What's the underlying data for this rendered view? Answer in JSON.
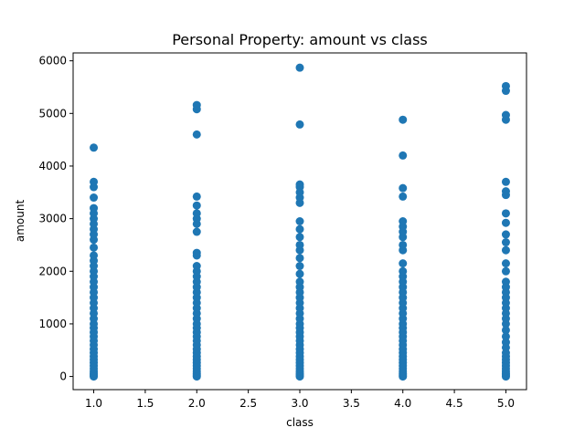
{
  "chart_data": {
    "type": "scatter",
    "title": "Personal Property: amount vs class",
    "xlabel": "class",
    "ylabel": "amount",
    "xlim": [
      0.8,
      5.2
    ],
    "ylim": [
      -250,
      6150
    ],
    "x_ticks": [
      1.0,
      1.5,
      2.0,
      2.5,
      3.0,
      3.5,
      4.0,
      4.5,
      5.0
    ],
    "x_tick_labels": [
      "1.0",
      "1.5",
      "2.0",
      "2.5",
      "3.0",
      "3.5",
      "4.0",
      "4.5",
      "5.0"
    ],
    "y_ticks": [
      0,
      1000,
      2000,
      3000,
      4000,
      5000,
      6000
    ],
    "y_tick_labels": [
      "0",
      "1000",
      "2000",
      "3000",
      "4000",
      "5000",
      "6000"
    ],
    "grid": false,
    "marker_color": "#1f77b4",
    "series": [
      {
        "points": [
          [
            1,
            0
          ],
          [
            1,
            30
          ],
          [
            1,
            60
          ],
          [
            1,
            100
          ],
          [
            1,
            150
          ],
          [
            1,
            200
          ],
          [
            1,
            260
          ],
          [
            1,
            320
          ],
          [
            1,
            380
          ],
          [
            1,
            450
          ],
          [
            1,
            520
          ],
          [
            1,
            600
          ],
          [
            1,
            680
          ],
          [
            1,
            760
          ],
          [
            1,
            840
          ],
          [
            1,
            920
          ],
          [
            1,
            1000
          ],
          [
            1,
            1100
          ],
          [
            1,
            1200
          ],
          [
            1,
            1300
          ],
          [
            1,
            1400
          ],
          [
            1,
            1500
          ],
          [
            1,
            1600
          ],
          [
            1,
            1700
          ],
          [
            1,
            1800
          ],
          [
            1,
            1900
          ],
          [
            1,
            2000
          ],
          [
            1,
            2100
          ],
          [
            1,
            2200
          ],
          [
            1,
            2300
          ],
          [
            1,
            2450
          ],
          [
            1,
            2600
          ],
          [
            1,
            2700
          ],
          [
            1,
            2800
          ],
          [
            1,
            2900
          ],
          [
            1,
            3000
          ],
          [
            1,
            3100
          ],
          [
            1,
            3200
          ],
          [
            1,
            3400
          ],
          [
            1,
            3600
          ],
          [
            1,
            3700
          ],
          [
            1,
            4350
          ],
          [
            2,
            0
          ],
          [
            2,
            30
          ],
          [
            2,
            60
          ],
          [
            2,
            100
          ],
          [
            2,
            150
          ],
          [
            2,
            200
          ],
          [
            2,
            260
          ],
          [
            2,
            320
          ],
          [
            2,
            380
          ],
          [
            2,
            450
          ],
          [
            2,
            520
          ],
          [
            2,
            600
          ],
          [
            2,
            680
          ],
          [
            2,
            760
          ],
          [
            2,
            840
          ],
          [
            2,
            920
          ],
          [
            2,
            1000
          ],
          [
            2,
            1100
          ],
          [
            2,
            1200
          ],
          [
            2,
            1300
          ],
          [
            2,
            1400
          ],
          [
            2,
            1500
          ],
          [
            2,
            1600
          ],
          [
            2,
            1700
          ],
          [
            2,
            1800
          ],
          [
            2,
            1900
          ],
          [
            2,
            2000
          ],
          [
            2,
            2100
          ],
          [
            2,
            2300
          ],
          [
            2,
            2350
          ],
          [
            2,
            2750
          ],
          [
            2,
            2900
          ],
          [
            2,
            3000
          ],
          [
            2,
            3100
          ],
          [
            2,
            3250
          ],
          [
            2,
            3420
          ],
          [
            2,
            4600
          ],
          [
            2,
            5080
          ],
          [
            2,
            5160
          ],
          [
            3,
            0
          ],
          [
            3,
            30
          ],
          [
            3,
            60
          ],
          [
            3,
            100
          ],
          [
            3,
            150
          ],
          [
            3,
            200
          ],
          [
            3,
            260
          ],
          [
            3,
            320
          ],
          [
            3,
            380
          ],
          [
            3,
            450
          ],
          [
            3,
            520
          ],
          [
            3,
            600
          ],
          [
            3,
            680
          ],
          [
            3,
            760
          ],
          [
            3,
            840
          ],
          [
            3,
            920
          ],
          [
            3,
            1000
          ],
          [
            3,
            1100
          ],
          [
            3,
            1200
          ],
          [
            3,
            1300
          ],
          [
            3,
            1400
          ],
          [
            3,
            1500
          ],
          [
            3,
            1600
          ],
          [
            3,
            1700
          ],
          [
            3,
            1800
          ],
          [
            3,
            1950
          ],
          [
            3,
            2100
          ],
          [
            3,
            2250
          ],
          [
            3,
            2400
          ],
          [
            3,
            2500
          ],
          [
            3,
            2650
          ],
          [
            3,
            2800
          ],
          [
            3,
            2950
          ],
          [
            3,
            3300
          ],
          [
            3,
            3400
          ],
          [
            3,
            3500
          ],
          [
            3,
            3600
          ],
          [
            3,
            3650
          ],
          [
            3,
            4790
          ],
          [
            3,
            5870
          ],
          [
            4,
            0
          ],
          [
            4,
            30
          ],
          [
            4,
            60
          ],
          [
            4,
            100
          ],
          [
            4,
            150
          ],
          [
            4,
            200
          ],
          [
            4,
            260
          ],
          [
            4,
            320
          ],
          [
            4,
            380
          ],
          [
            4,
            450
          ],
          [
            4,
            520
          ],
          [
            4,
            600
          ],
          [
            4,
            680
          ],
          [
            4,
            760
          ],
          [
            4,
            840
          ],
          [
            4,
            920
          ],
          [
            4,
            1000
          ],
          [
            4,
            1100
          ],
          [
            4,
            1200
          ],
          [
            4,
            1300
          ],
          [
            4,
            1400
          ],
          [
            4,
            1500
          ],
          [
            4,
            1600
          ],
          [
            4,
            1700
          ],
          [
            4,
            1800
          ],
          [
            4,
            1900
          ],
          [
            4,
            2000
          ],
          [
            4,
            2150
          ],
          [
            4,
            2400
          ],
          [
            4,
            2500
          ],
          [
            4,
            2650
          ],
          [
            4,
            2750
          ],
          [
            4,
            2850
          ],
          [
            4,
            2950
          ],
          [
            4,
            3420
          ],
          [
            4,
            3580
          ],
          [
            4,
            4200
          ],
          [
            4,
            4880
          ],
          [
            5,
            0
          ],
          [
            5,
            30
          ],
          [
            5,
            60
          ],
          [
            5,
            100
          ],
          [
            5,
            150
          ],
          [
            5,
            200
          ],
          [
            5,
            260
          ],
          [
            5,
            320
          ],
          [
            5,
            380
          ],
          [
            5,
            450
          ],
          [
            5,
            550
          ],
          [
            5,
            650
          ],
          [
            5,
            760
          ],
          [
            5,
            880
          ],
          [
            5,
            1000
          ],
          [
            5,
            1100
          ],
          [
            5,
            1200
          ],
          [
            5,
            1300
          ],
          [
            5,
            1400
          ],
          [
            5,
            1500
          ],
          [
            5,
            1600
          ],
          [
            5,
            1700
          ],
          [
            5,
            1800
          ],
          [
            5,
            2000
          ],
          [
            5,
            2150
          ],
          [
            5,
            2400
          ],
          [
            5,
            2550
          ],
          [
            5,
            2700
          ],
          [
            5,
            2920
          ],
          [
            5,
            3100
          ],
          [
            5,
            3450
          ],
          [
            5,
            3520
          ],
          [
            5,
            3700
          ],
          [
            5,
            4880
          ],
          [
            5,
            4970
          ],
          [
            5,
            5430
          ],
          [
            5,
            5520
          ]
        ]
      }
    ]
  }
}
